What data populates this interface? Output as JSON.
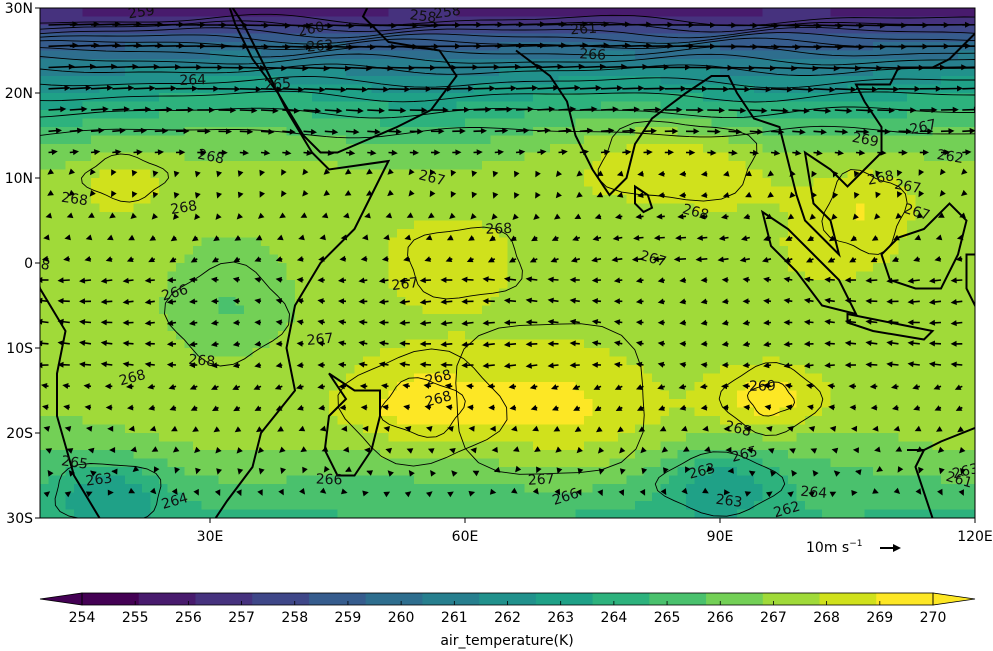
{
  "map": {
    "lon_range": [
      10,
      120
    ],
    "lat_range": [
      -30,
      30
    ],
    "lon_ticks": [
      {
        "value": 30,
        "label": "30E"
      },
      {
        "value": 60,
        "label": "60E"
      },
      {
        "value": 90,
        "label": "90E"
      },
      {
        "value": 120,
        "label": "120E"
      }
    ],
    "lat_ticks": [
      {
        "value": 30,
        "label": "30N"
      },
      {
        "value": 20,
        "label": "20N"
      },
      {
        "value": 10,
        "label": "10N"
      },
      {
        "value": 0,
        "label": "0"
      },
      {
        "value": -10,
        "label": "10S"
      },
      {
        "value": -20,
        "label": "20S"
      },
      {
        "value": -30,
        "label": "30S"
      }
    ],
    "contour_labels": [
      "259",
      "258",
      "260",
      "261",
      "262",
      "263",
      "264",
      "265",
      "266",
      "267",
      "268",
      "269"
    ],
    "quiver_key": {
      "text": "10m s",
      "superscript": "−1",
      "speed": 10
    }
  },
  "colorbar": {
    "levels": [
      "254",
      "255",
      "256",
      "257",
      "258",
      "259",
      "260",
      "261",
      "262",
      "263",
      "264",
      "265",
      "266",
      "267",
      "268",
      "269",
      "270"
    ],
    "colors": [
      "#440154",
      "#481b6d",
      "#46327e",
      "#3f4788",
      "#365c8d",
      "#2e6e8e",
      "#277f8e",
      "#21918c",
      "#1fa187",
      "#2db27d",
      "#4ac16d",
      "#73d056",
      "#a0da39",
      "#d0e11c",
      "#fde725"
    ],
    "label": "air_temperature(K)"
  }
}
